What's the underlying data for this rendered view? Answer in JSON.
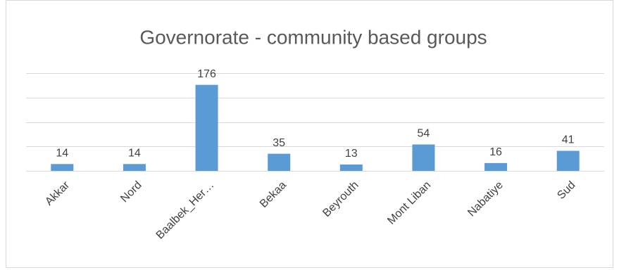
{
  "chart_data": {
    "type": "bar",
    "title": "Governorate - community based groups",
    "categories": [
      "Akkar",
      "Nord",
      "Baalbek_Her…",
      "Bekaa",
      "Beyrouth",
      "Mont Liban",
      "Nabatiye",
      "Sud"
    ],
    "values": [
      14,
      14,
      176,
      35,
      13,
      54,
      16,
      41
    ],
    "color": "#5b9bd5",
    "ylim": [
      0,
      200
    ],
    "yticks": [
      0,
      50,
      100,
      150,
      200
    ],
    "grid": true
  }
}
